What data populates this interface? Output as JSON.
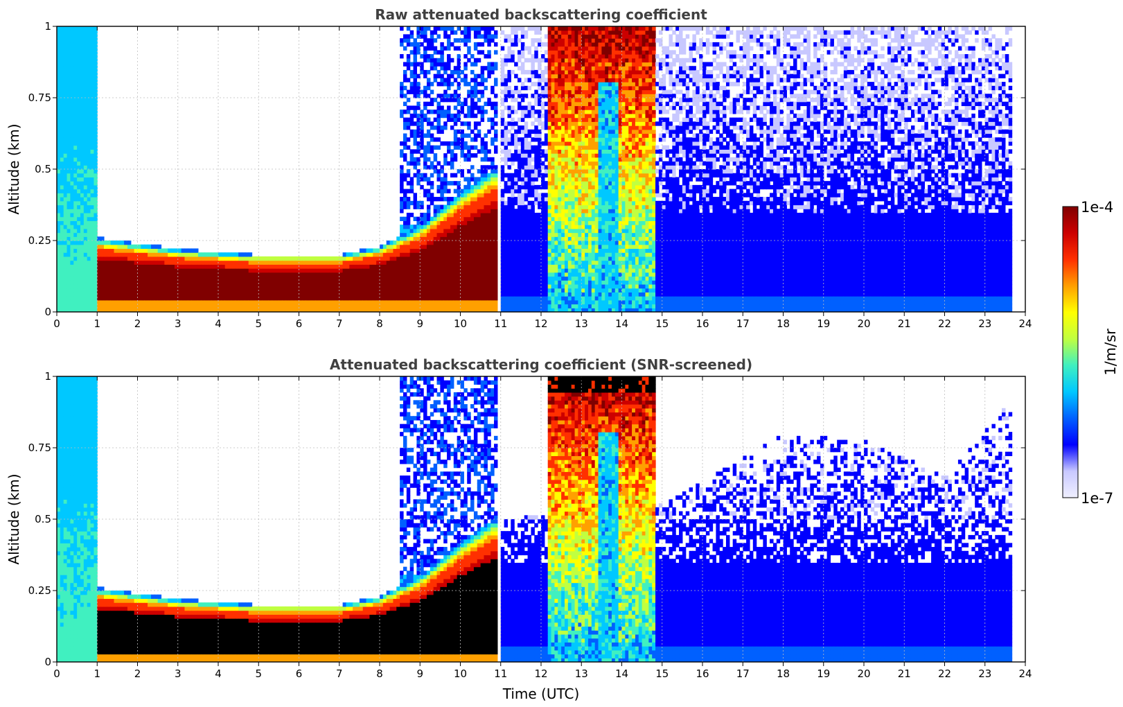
{
  "colors": {
    "colormap": [
      "#f0f0ff",
      "#c8c8ff",
      "#0000ff",
      "#0060ff",
      "#00c8ff",
      "#40f0c0",
      "#c0ff40",
      "#ffff00",
      "#ffa000",
      "#ff3000",
      "#cc0000",
      "#800000"
    ],
    "saturated_screened": "#000000",
    "grid": "#bdbdbd"
  },
  "colorbar": {
    "max_label": "1e-4",
    "min_label": "1e-7",
    "unit_label": "1/m/sr",
    "scale": "log"
  },
  "chart_data": [
    {
      "type": "heatmap",
      "title": "Raw attenuated backscattering coefficient",
      "xlabel": "",
      "ylabel": "Altitude (km)",
      "xlim": [
        0,
        24
      ],
      "ylim": [
        0,
        1
      ],
      "xticks": [
        "0",
        "1",
        "2",
        "3",
        "4",
        "5",
        "6",
        "7",
        "8",
        "9",
        "10",
        "11",
        "12",
        "13",
        "14",
        "15",
        "16",
        "17",
        "18",
        "19",
        "20",
        "21",
        "22",
        "23",
        "24"
      ],
      "yticks": [
        "0",
        "0.25",
        "0.5",
        "0.75",
        "1"
      ],
      "grid": true,
      "features": {
        "fog_layer_top_km": [
          [
            1.0,
            0.26
          ],
          [
            3.0,
            0.22
          ],
          [
            5.0,
            0.2
          ],
          [
            7.0,
            0.2
          ],
          [
            8.0,
            0.23
          ],
          [
            9.0,
            0.3
          ],
          [
            10.0,
            0.42
          ],
          [
            10.8,
            0.5
          ]
        ],
        "cloud_tops_over_1km_hours": [
          [
            12.2,
            14.8
          ]
        ],
        "data_end_hour": 23.7
      }
    },
    {
      "type": "heatmap",
      "title": "Attenuated backscattering coefficient (SNR-screened)",
      "xlabel": "Time (UTC)",
      "ylabel": "Altitude (km)",
      "xlim": [
        0,
        24
      ],
      "ylim": [
        0,
        1
      ],
      "xticks": [
        "0",
        "1",
        "2",
        "3",
        "4",
        "5",
        "6",
        "7",
        "8",
        "9",
        "10",
        "11",
        "12",
        "13",
        "14",
        "15",
        "16",
        "17",
        "18",
        "19",
        "20",
        "21",
        "22",
        "23",
        "24"
      ],
      "yticks": [
        "0",
        "0.25",
        "0.5",
        "0.75",
        "1"
      ],
      "grid": true,
      "features": {
        "fog_layer_top_km": [
          [
            1.0,
            0.26
          ],
          [
            3.0,
            0.22
          ],
          [
            5.0,
            0.2
          ],
          [
            7.0,
            0.2
          ],
          [
            8.0,
            0.23
          ],
          [
            9.0,
            0.3
          ],
          [
            10.0,
            0.42
          ],
          [
            10.8,
            0.5
          ]
        ],
        "cloud_tops_over_1km_hours": [
          [
            12.2,
            14.8
          ]
        ],
        "screened_signal_top_km": [
          [
            11.0,
            0.5
          ],
          [
            15.0,
            0.55
          ],
          [
            18.0,
            0.8
          ],
          [
            20.0,
            0.78
          ],
          [
            22.0,
            0.65
          ],
          [
            23.5,
            0.9
          ]
        ],
        "data_end_hour": 23.7
      }
    }
  ]
}
